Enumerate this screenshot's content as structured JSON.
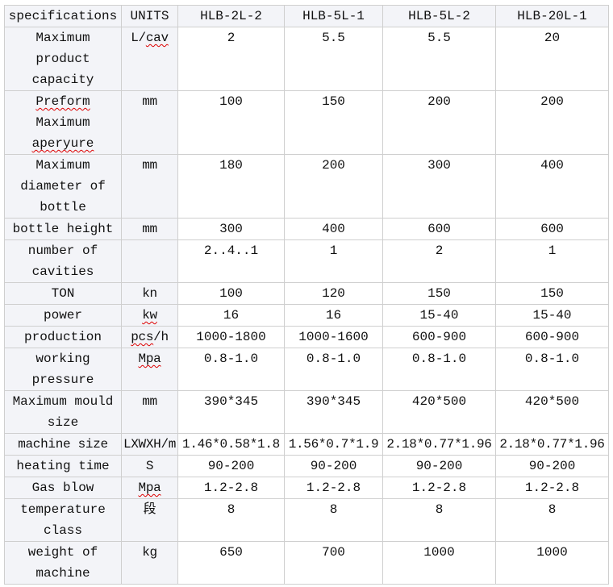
{
  "header": [
    "specifications",
    "UNITS",
    "HLB-2L-2",
    "HLB-5L-1",
    "HLB-5L-2",
    "HLB-20L-1"
  ],
  "rows": [
    {
      "spec": "Maximum product capacity",
      "unit": "L/cav",
      "values": [
        "2",
        "5.5",
        "5.5",
        "20"
      ]
    },
    {
      "spec": "Preform Maximum aperyure",
      "unit": "mm",
      "values": [
        "100",
        "150",
        "200",
        "200"
      ]
    },
    {
      "spec": "Maximum diameter of bottle",
      "unit": "mm",
      "values": [
        "180",
        "200",
        "300",
        "400"
      ]
    },
    {
      "spec": "bottle height",
      "unit": "mm",
      "values": [
        "300",
        "400",
        "600",
        "600"
      ]
    },
    {
      "spec": "number of cavities",
      "unit": "",
      "values": [
        "2..4..1",
        "1",
        "2",
        "1"
      ]
    },
    {
      "spec": "TON",
      "unit": "kn",
      "values": [
        "100",
        "120",
        "150",
        "150"
      ]
    },
    {
      "spec": "power",
      "unit": "kw",
      "values": [
        "16",
        "16",
        "15-40",
        "15-40"
      ]
    },
    {
      "spec": "production",
      "unit": "pcs/h",
      "values": [
        "1000-1800",
        "1000-1600",
        "600-900",
        "600-900"
      ]
    },
    {
      "spec": "working pressure",
      "unit": "Mpa",
      "values": [
        "0.8-1.0",
        "0.8-1.0",
        "0.8-1.0",
        "0.8-1.0"
      ]
    },
    {
      "spec": "Maximum mould size",
      "unit": "mm",
      "values": [
        "390*345",
        "390*345",
        "420*500",
        "420*500"
      ]
    },
    {
      "spec": "machine size",
      "unit": "LXWXH/m",
      "values": [
        "1.46*0.58*1.8",
        "1.56*0.7*1.9",
        "2.18*0.77*1.96",
        "2.18*0.77*1.96"
      ]
    },
    {
      "spec": "heating time",
      "unit": "S",
      "values": [
        "90-200",
        "90-200",
        "90-200",
        "90-200"
      ]
    },
    {
      "spec": "Gas blow",
      "unit": "Mpa",
      "values": [
        "1.2-2.8",
        "1.2-2.8",
        "1.2-2.8",
        "1.2-2.8"
      ]
    },
    {
      "spec": "temperature class",
      "unit": "段",
      "values": [
        "8",
        "8",
        "8",
        "8"
      ]
    },
    {
      "spec": "weight of machine",
      "unit": "kg",
      "values": [
        "650",
        "700",
        "1000",
        "1000"
      ]
    }
  ]
}
